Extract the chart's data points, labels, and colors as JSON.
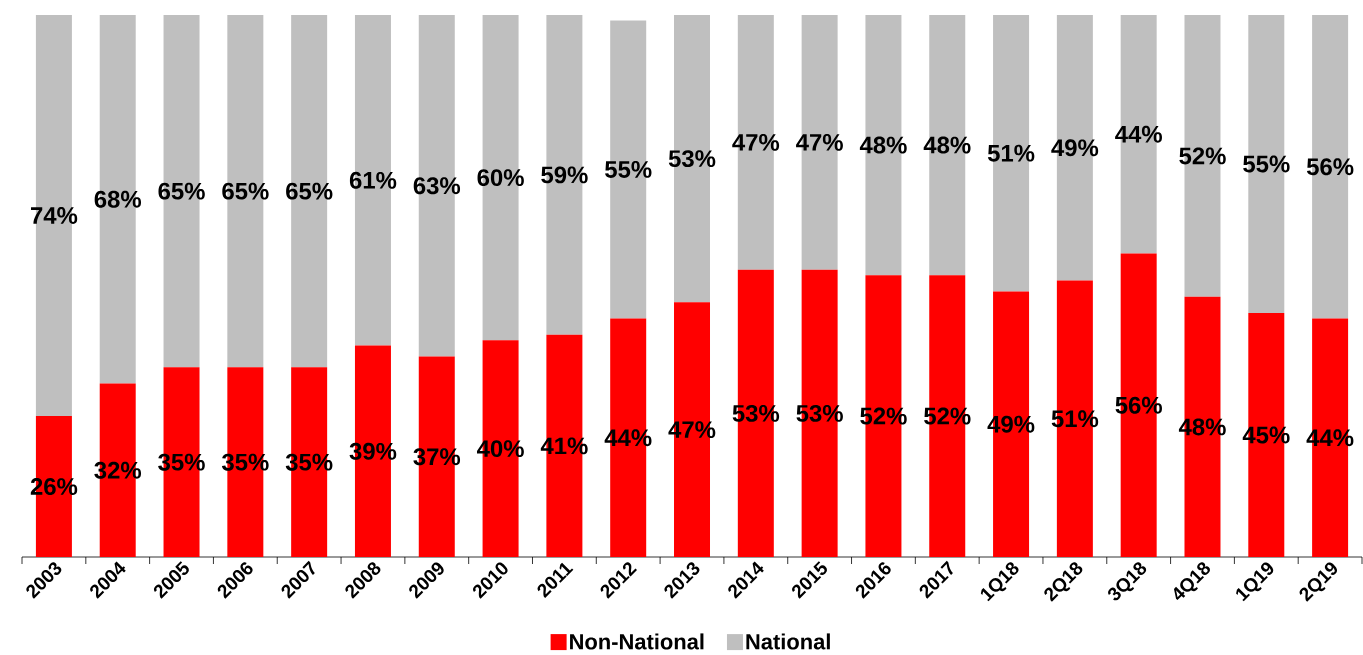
{
  "chart_data": {
    "type": "bar",
    "stacked": true,
    "legend": "bottom",
    "categories": [
      "2003",
      "2004",
      "2005",
      "2006",
      "2007",
      "2008",
      "2009",
      "2010",
      "2011",
      "2012",
      "2013",
      "2014",
      "2015",
      "2016",
      "2017",
      "1Q18",
      "2Q18",
      "3Q18",
      "4Q18",
      "1Q19",
      "2Q19"
    ],
    "series": [
      {
        "name": "Non-National",
        "color": "#ff0000",
        "values": [
          26,
          32,
          35,
          35,
          35,
          39,
          37,
          40,
          41,
          44,
          47,
          53,
          53,
          52,
          52,
          49,
          51,
          56,
          48,
          45,
          44
        ],
        "value_labels": [
          "26%",
          "32%",
          "35%",
          "35%",
          "35%",
          "39%",
          "37%",
          "40%",
          "41%",
          "44%",
          "47%",
          "53%",
          "53%",
          "52%",
          "52%",
          "49%",
          "51%",
          "56%",
          "48%",
          "45%",
          "44%"
        ]
      },
      {
        "name": "National",
        "color": "#bfbfbf",
        "values": [
          74,
          68,
          65,
          65,
          65,
          61,
          63,
          60,
          59,
          55,
          53,
          47,
          47,
          48,
          48,
          51,
          49,
          44,
          52,
          55,
          56
        ],
        "value_labels": [
          "74%",
          "68%",
          "65%",
          "65%",
          "65%",
          "61%",
          "63%",
          "60%",
          "59%",
          "55%",
          "53%",
          "47%",
          "47%",
          "48%",
          "48%",
          "51%",
          "49%",
          "44%",
          "52%",
          "55%",
          "56%"
        ]
      }
    ]
  }
}
